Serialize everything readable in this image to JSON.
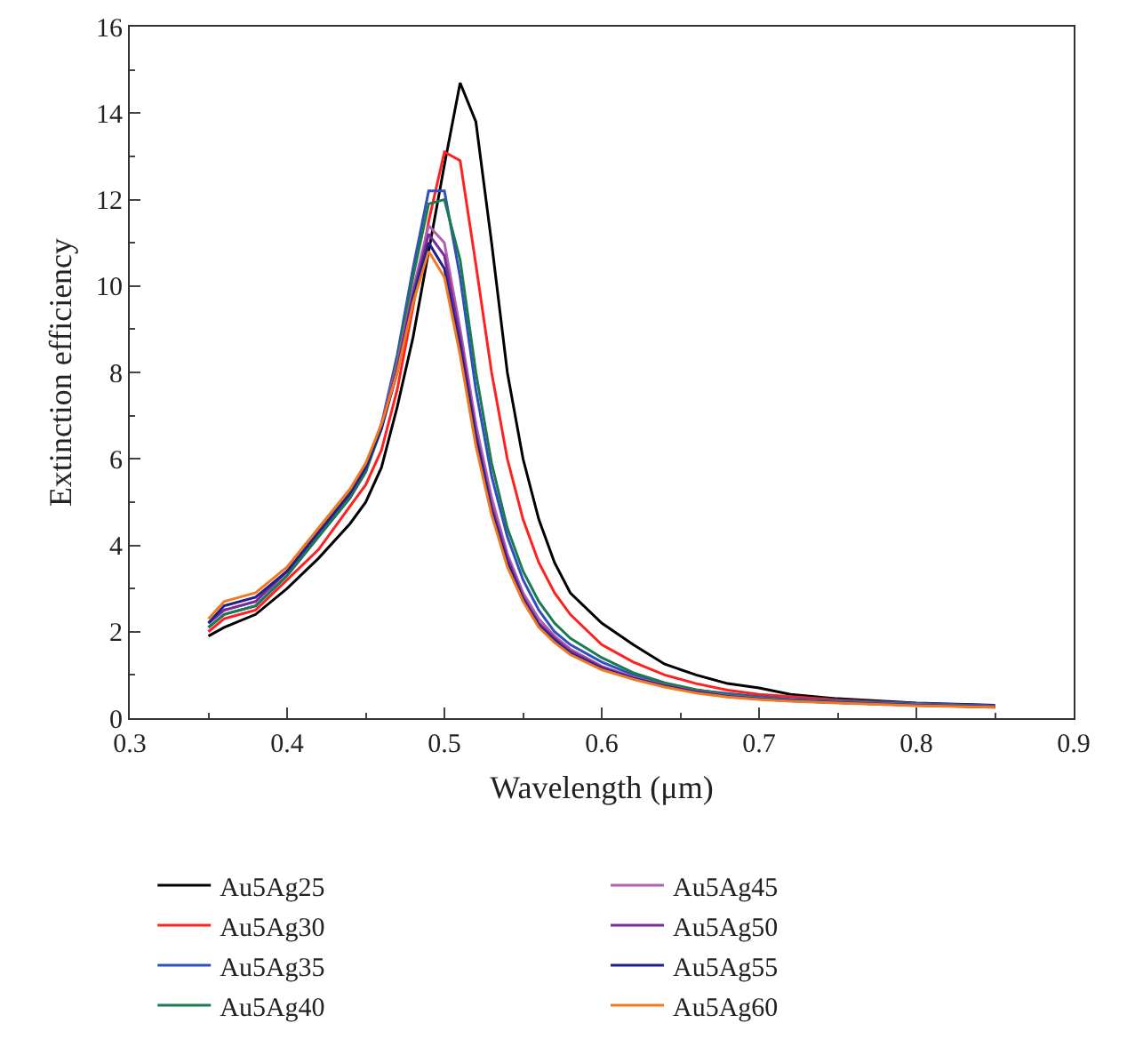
{
  "chart_data": {
    "type": "line",
    "xlabel": "Wavelength (μm)",
    "ylabel": "Extinction efficiency",
    "x": [
      0.35,
      0.36,
      0.38,
      0.4,
      0.42,
      0.44,
      0.45,
      0.46,
      0.47,
      0.48,
      0.49,
      0.5,
      0.51,
      0.52,
      0.53,
      0.54,
      0.55,
      0.56,
      0.57,
      0.58,
      0.6,
      0.62,
      0.64,
      0.66,
      0.68,
      0.7,
      0.72,
      0.75,
      0.8,
      0.85
    ],
    "xlim": [
      0.3,
      0.9
    ],
    "xticks": [
      0.3,
      0.4,
      0.5,
      0.6,
      0.7,
      0.8,
      0.9
    ],
    "ylim": [
      0,
      16
    ],
    "yticks": [
      0,
      2,
      4,
      6,
      8,
      10,
      12,
      14,
      16
    ],
    "grid": false,
    "legend": "bottom",
    "marker": "none",
    "line_style": "solid",
    "series": [
      {
        "name": "Au5Ag25",
        "color": "#000000",
        "values": [
          1.9,
          2.1,
          2.4,
          3.0,
          3.7,
          4.5,
          5.0,
          5.8,
          7.2,
          8.8,
          10.8,
          12.8,
          14.7,
          13.8,
          11.0,
          8.0,
          6.0,
          4.6,
          3.6,
          2.9,
          2.2,
          1.7,
          1.25,
          1.0,
          0.8,
          0.7,
          0.55,
          0.45,
          0.35,
          0.3
        ]
      },
      {
        "name": "Au5Ag30",
        "color": "#ff2020",
        "values": [
          2.0,
          2.3,
          2.5,
          3.2,
          3.9,
          4.9,
          5.4,
          6.2,
          7.6,
          9.5,
          11.5,
          13.1,
          12.9,
          10.5,
          8.0,
          6.0,
          4.6,
          3.6,
          2.9,
          2.4,
          1.7,
          1.3,
          1.0,
          0.8,
          0.65,
          0.55,
          0.5,
          0.42,
          0.33,
          0.28
        ]
      },
      {
        "name": "Au5Ag35",
        "color": "#3050c0",
        "values": [
          2.1,
          2.4,
          2.6,
          3.3,
          4.2,
          5.1,
          5.7,
          6.8,
          8.4,
          10.4,
          12.2,
          12.2,
          10.2,
          7.6,
          5.6,
          4.2,
          3.2,
          2.5,
          2.0,
          1.7,
          1.3,
          1.0,
          0.8,
          0.65,
          0.57,
          0.5,
          0.44,
          0.4,
          0.34,
          0.29
        ]
      },
      {
        "name": "Au5Ag40",
        "color": "#1a7a50",
        "values": [
          2.1,
          2.4,
          2.6,
          3.3,
          4.2,
          5.1,
          5.7,
          6.7,
          8.3,
          10.2,
          11.9,
          12.0,
          10.6,
          8.0,
          5.9,
          4.4,
          3.4,
          2.7,
          2.2,
          1.85,
          1.4,
          1.05,
          0.82,
          0.66,
          0.55,
          0.48,
          0.42,
          0.38,
          0.32,
          0.27
        ]
      },
      {
        "name": "Au5Ag45",
        "color": "#b060b0",
        "values": [
          2.2,
          2.5,
          2.7,
          3.4,
          4.3,
          5.2,
          5.8,
          6.8,
          8.2,
          9.9,
          11.4,
          11.0,
          9.0,
          6.8,
          5.1,
          3.8,
          2.9,
          2.3,
          1.9,
          1.6,
          1.2,
          0.95,
          0.76,
          0.62,
          0.52,
          0.46,
          0.41,
          0.37,
          0.31,
          0.26
        ]
      },
      {
        "name": "Au5Ag50",
        "color": "#7a2a9a",
        "values": [
          2.2,
          2.5,
          2.7,
          3.4,
          4.3,
          5.2,
          5.8,
          6.8,
          8.1,
          9.8,
          11.2,
          10.7,
          8.8,
          6.6,
          4.9,
          3.7,
          2.8,
          2.2,
          1.85,
          1.55,
          1.18,
          0.93,
          0.75,
          0.61,
          0.51,
          0.45,
          0.4,
          0.36,
          0.3,
          0.26
        ]
      },
      {
        "name": "Au5Ag55",
        "color": "#20208a",
        "values": [
          2.2,
          2.6,
          2.8,
          3.4,
          4.3,
          5.2,
          5.8,
          6.7,
          8.0,
          9.7,
          11.0,
          10.4,
          8.6,
          6.5,
          4.8,
          3.6,
          2.75,
          2.15,
          1.8,
          1.5,
          1.15,
          0.92,
          0.74,
          0.6,
          0.5,
          0.44,
          0.4,
          0.36,
          0.3,
          0.25
        ]
      },
      {
        "name": "Au5Ag60",
        "color": "#f07a20",
        "values": [
          2.3,
          2.7,
          2.9,
          3.5,
          4.4,
          5.3,
          5.9,
          6.8,
          8.0,
          9.6,
          10.8,
          10.2,
          8.4,
          6.3,
          4.7,
          3.5,
          2.7,
          2.1,
          1.75,
          1.47,
          1.12,
          0.9,
          0.72,
          0.58,
          0.49,
          0.43,
          0.39,
          0.35,
          0.29,
          0.25
        ]
      }
    ]
  }
}
